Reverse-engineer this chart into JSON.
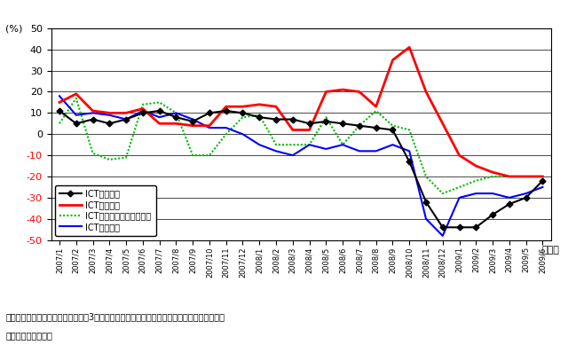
{
  "x_labels": [
    "2007/1",
    "2007/2",
    "2007/3",
    "2007/4",
    "2007/5",
    "2007/6",
    "2007/7",
    "2007/8",
    "2007/9",
    "2007/10",
    "2007/11",
    "2007/12",
    "2008/1",
    "2008/2",
    "2008/3",
    "2008/4",
    "2008/5",
    "2008/6",
    "2008/7",
    "2008/8",
    "2008/9",
    "2008/10",
    "2008/11",
    "2008/12",
    "2009/1",
    "2009/2",
    "2009/3",
    "2009/4",
    "2009/5",
    "2009/6"
  ],
  "production": [
    11,
    5,
    7,
    5,
    7,
    10,
    11,
    8,
    6,
    10,
    11,
    10,
    8,
    7,
    7,
    5,
    6,
    5,
    4,
    3,
    2,
    -13,
    -32,
    -44,
    -44,
    -44,
    -38,
    -33,
    -30,
    -22
  ],
  "inventory": [
    15,
    19,
    11,
    10,
    10,
    12,
    5,
    5,
    4,
    4,
    13,
    13,
    14,
    13,
    2,
    2,
    20,
    21,
    20,
    13,
    35,
    41,
    20,
    5,
    -10,
    -15,
    -18,
    -20,
    -20,
    -20
  ],
  "capex": [
    5,
    17,
    -9,
    -12,
    -11,
    14,
    15,
    10,
    -10,
    -10,
    0,
    8,
    9,
    -5,
    -5,
    -5,
    8,
    -5,
    4,
    11,
    4,
    2,
    -20,
    -28,
    -25,
    -22,
    -20,
    -20,
    -20,
    -20
  ],
  "exports": [
    18,
    9,
    10,
    9,
    7,
    11,
    8,
    10,
    7,
    3,
    3,
    0,
    -5,
    -8,
    -10,
    -5,
    -7,
    -5,
    -8,
    -8,
    -5,
    -8,
    -40,
    -48,
    -30,
    -28,
    -28,
    -30,
    -28,
    -25
  ],
  "ylim": [
    -50,
    50
  ],
  "yticks": [
    -50,
    -40,
    -30,
    -20,
    -10,
    0,
    10,
    20,
    30,
    40,
    50
  ],
  "production_color": "#000000",
  "inventory_color": "#ff0000",
  "capex_color": "#00bb00",
  "exports_color": "#0000ff",
  "ylabel": "(%)",
  "xlabel": "（月）",
  "note1": "（備考）経済産業省「鉱工業指数」3及製造業活動指数」、内閣府「機械受注統計」、財務省",
  "note2": "易統計」より作成。",
  "legend_labels": [
    "ICT関連生産",
    "ICT関連在庫",
    "ICT関連設備投資（民需）",
    "ICT関連輸出"
  ],
  "bg_color": "#ffffff"
}
